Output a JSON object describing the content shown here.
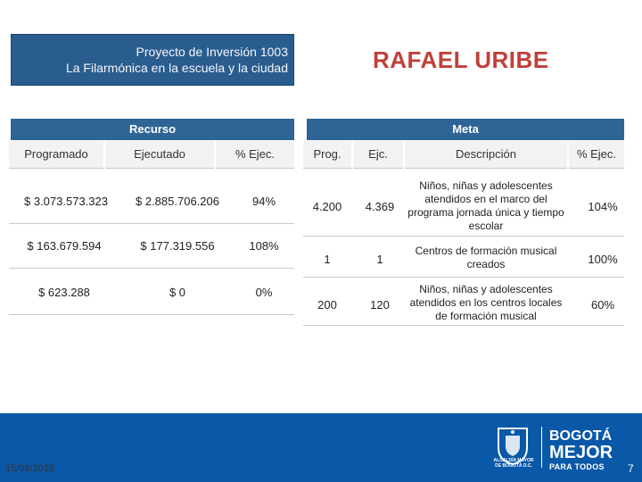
{
  "header": {
    "project_line1": "Proyecto de Inversión 1003",
    "project_line2": "La Filarmónica en la escuela y la ciudad",
    "district": "RAFAEL URIBE"
  },
  "recurso": {
    "title": "Recurso",
    "columns": [
      "Programado",
      "Ejecutado",
      "% Ejec."
    ],
    "rows": [
      {
        "programado": "$ 3.073.573.323",
        "ejecutado": "$ 2.885.706.206",
        "pct": "94%"
      },
      {
        "programado": "$ 163.679.594",
        "ejecutado": "$ 177.319.556",
        "pct": "108%"
      },
      {
        "programado": "$ 623.288",
        "ejecutado": "$ 0",
        "pct": "0%"
      }
    ]
  },
  "meta": {
    "title": "Meta",
    "columns": [
      "Prog.",
      "Ejc.",
      "Descripción",
      "% Ejec."
    ],
    "rows": [
      {
        "prog": "4.200",
        "ejc": "4.369",
        "desc": [
          "Niños, niñas y adolescentes",
          "atendidos en el marco del",
          "programa jornada única y tiempo",
          "escolar"
        ],
        "pct": "104%"
      },
      {
        "prog": "1",
        "ejc": "1",
        "desc": [
          "Centros de formación musical",
          "creados"
        ],
        "pct": "100%"
      },
      {
        "prog": "200",
        "ejc": "120",
        "desc": [
          "Niños, niñas y adolescentes",
          "atendidos en los centros locales",
          "de formación musical"
        ],
        "pct": "60%"
      }
    ]
  },
  "footer": {
    "date": "15/08/2018",
    "page": "7",
    "seal_text": [
      "ALCALDÍA MAYOR",
      "DE BOGOTÁ D.C."
    ],
    "logo_line1": "BOGOTÁ",
    "logo_line2": "MEJOR",
    "logo_line3": "PARA TODOS",
    "colors": {
      "brand_blue": "#0a58a8",
      "header_blue": "#2f6496",
      "district_red": "#c0403a"
    }
  }
}
